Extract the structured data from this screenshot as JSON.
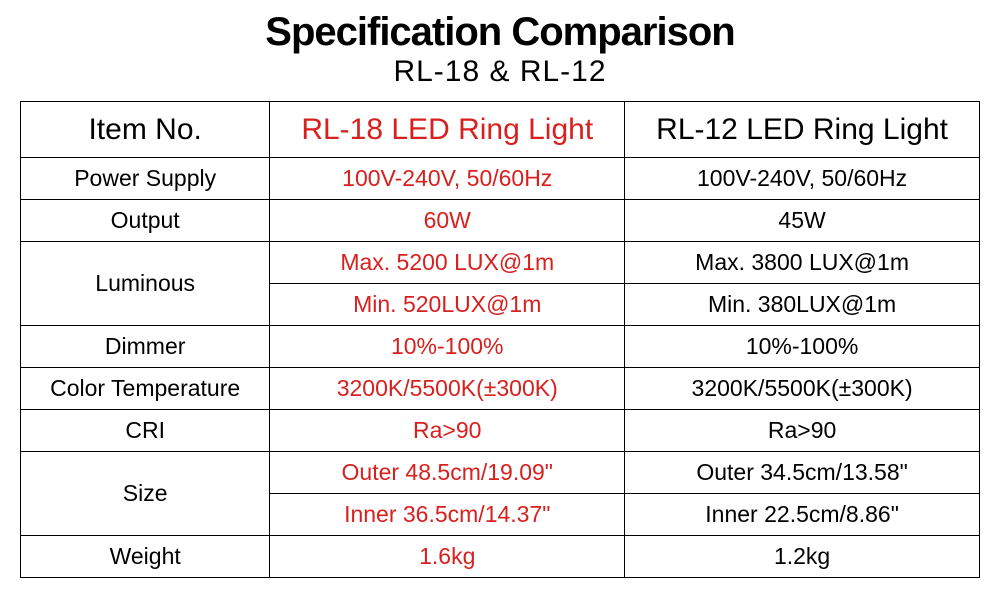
{
  "title": "Specification Comparison",
  "subtitle": "RL-18 & RL-12",
  "colors": {
    "highlight": "#d8201e",
    "text": "#000000",
    "border": "#000000",
    "background": "#ffffff"
  },
  "columns": {
    "label_header": "Item No.",
    "rl18_header": "RL-18 LED Ring Light",
    "rl12_header": "RL-12 LED Ring Light"
  },
  "rows": [
    {
      "label": "Power Supply",
      "rl18": "100V-240V, 50/60Hz",
      "rl12": "100V-240V, 50/60Hz",
      "span": 1
    },
    {
      "label": "Output",
      "rl18": "60W",
      "rl12": "45W",
      "span": 1
    },
    {
      "label": "Luminous",
      "rl18": "Max. 5200 LUX@1m",
      "rl12": "Max. 3800 LUX@1m",
      "span": 2,
      "rl18_2": "Min. 520LUX@1m",
      "rl12_2": "Min. 380LUX@1m"
    },
    {
      "label": "Dimmer",
      "rl18": "10%-100%",
      "rl12": "10%-100%",
      "span": 1
    },
    {
      "label": "Color Temperature",
      "rl18": "3200K/5500K(±300K)",
      "rl12": "3200K/5500K(±300K)",
      "span": 1
    },
    {
      "label": "CRI",
      "rl18": "Ra>90",
      "rl12": "Ra>90",
      "span": 1
    },
    {
      "label": "Size",
      "rl18": "Outer 48.5cm/19.09\"",
      "rl12": "Outer 34.5cm/13.58\"",
      "span": 2,
      "rl18_2": "Inner 36.5cm/14.37\"",
      "rl12_2": "Inner 22.5cm/8.86\""
    },
    {
      "label": "Weight",
      "rl18": "1.6kg",
      "rl12": "1.2kg",
      "span": 1
    }
  ],
  "typography": {
    "title_fontsize": 40,
    "subtitle_fontsize": 30,
    "header_fontsize": 30,
    "cell_fontsize": 23
  }
}
